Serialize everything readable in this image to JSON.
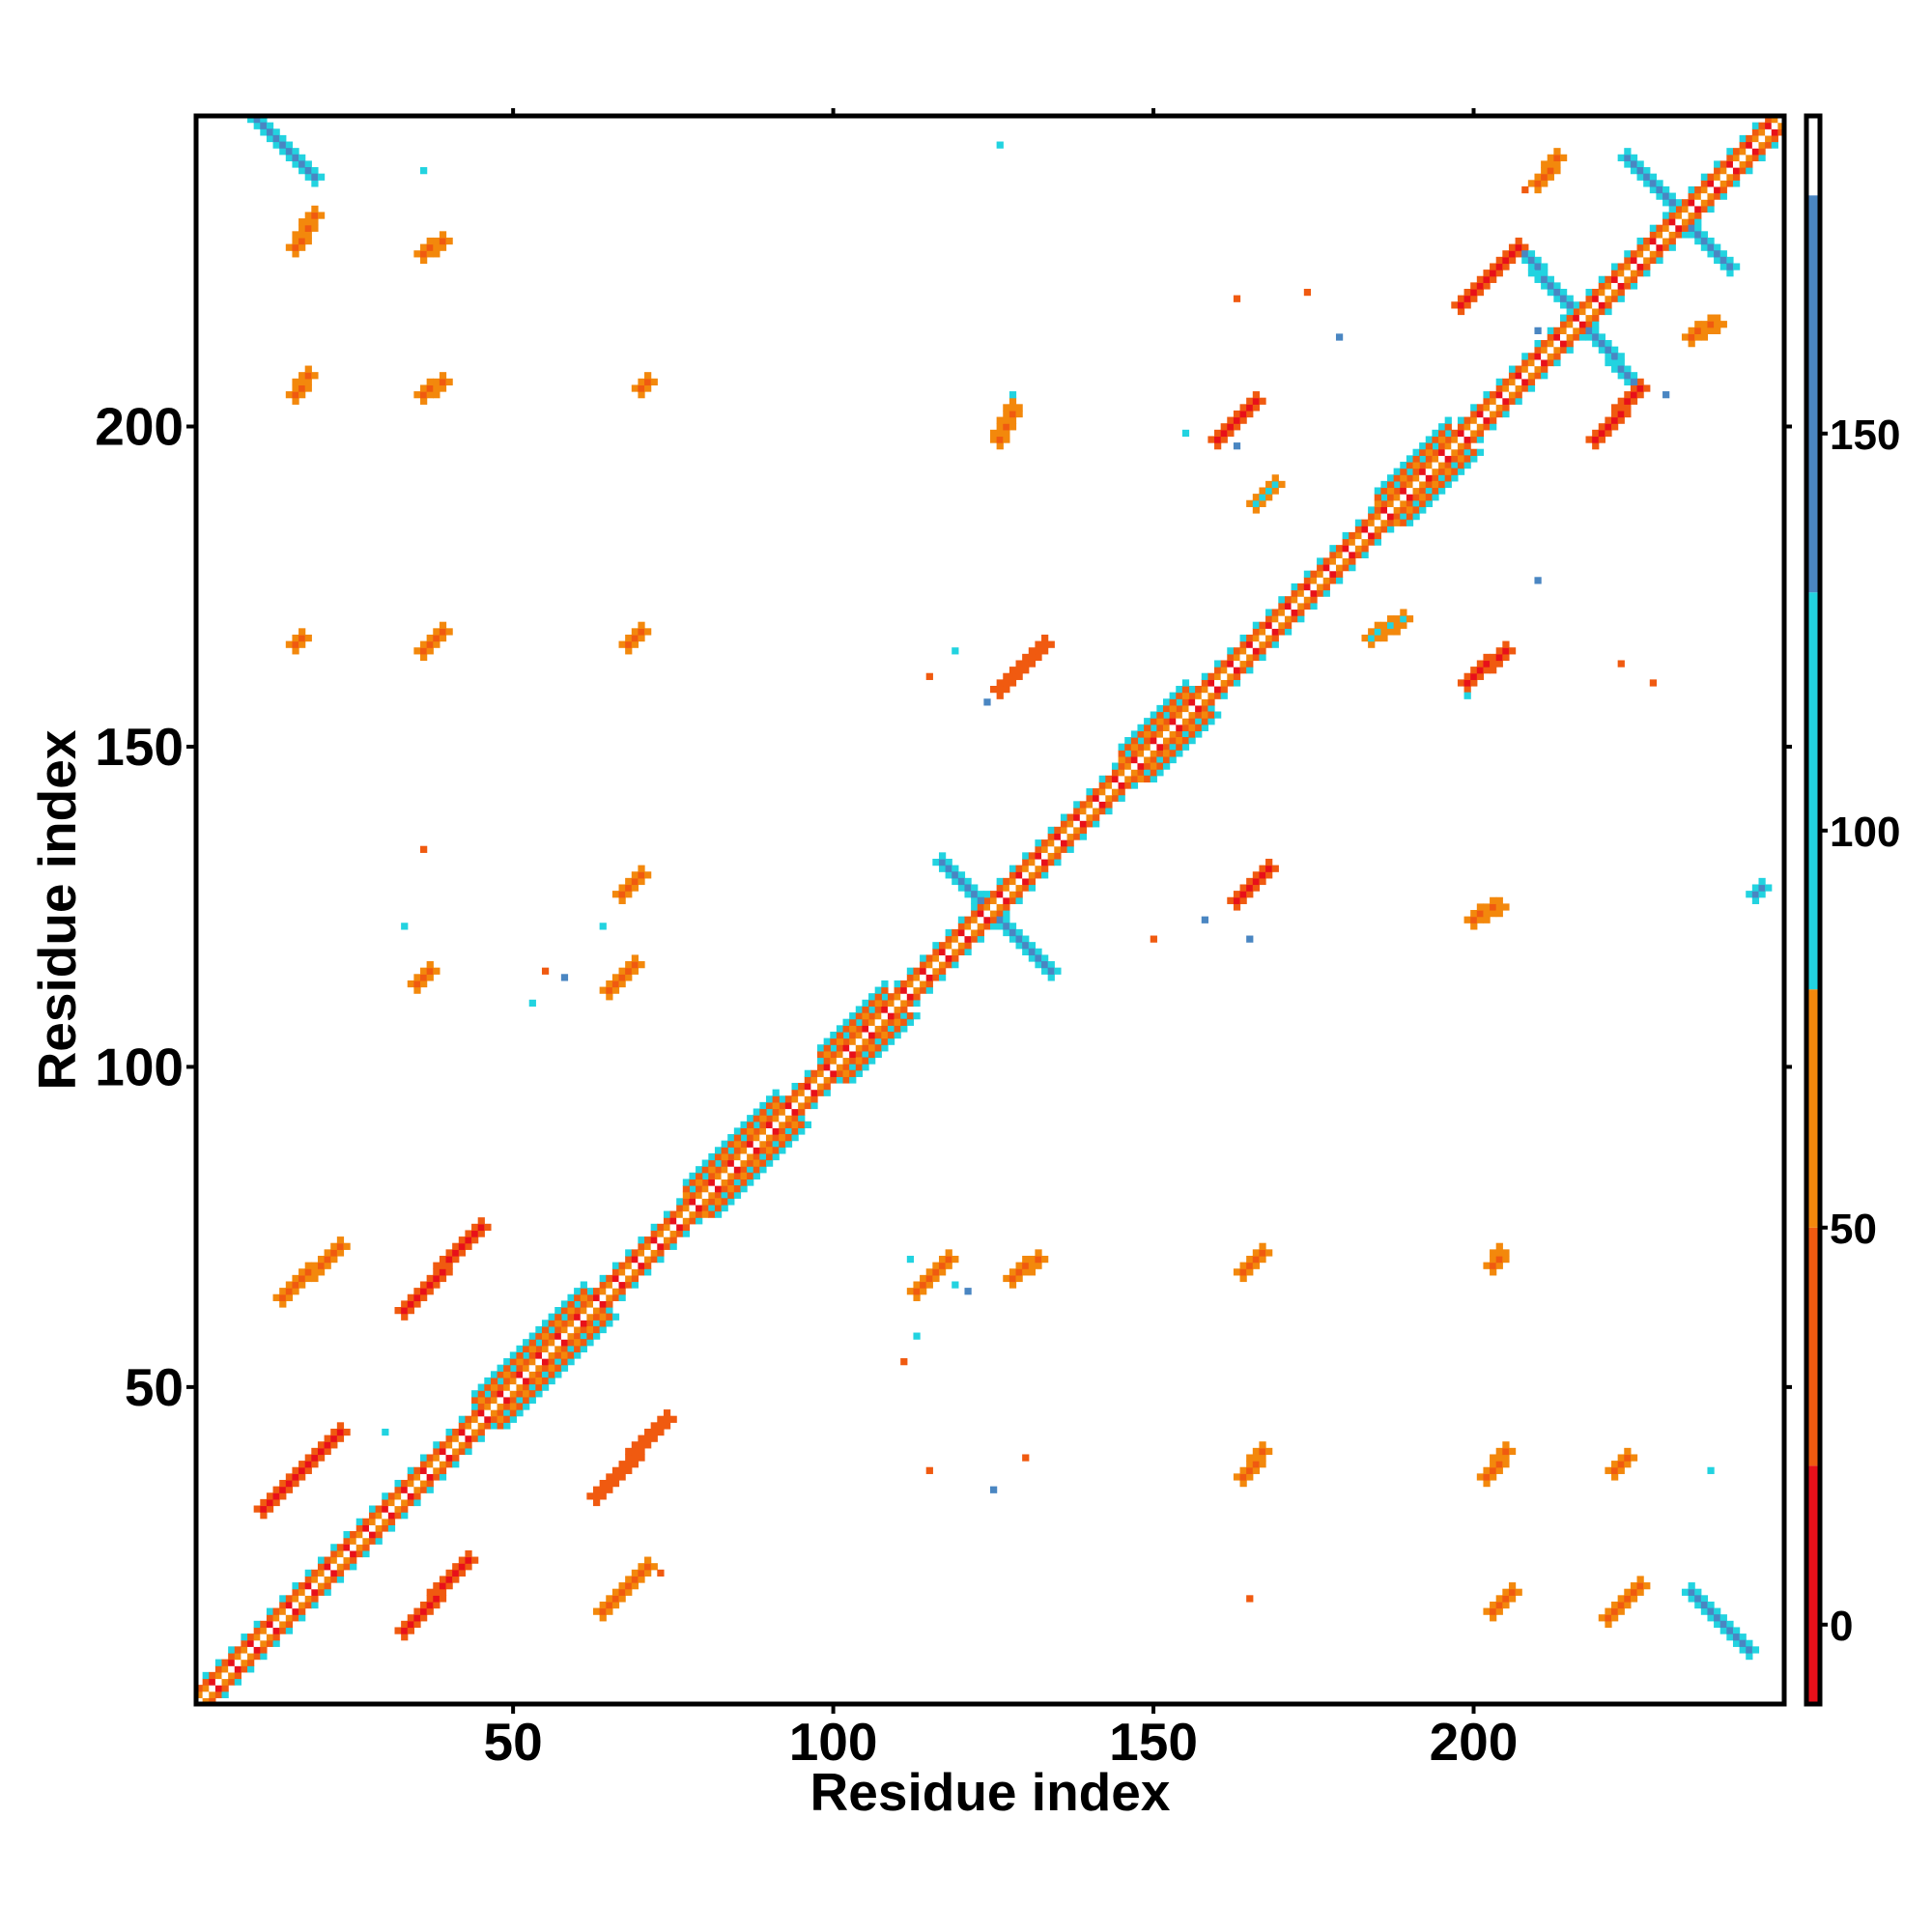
{
  "chart_data": {
    "type": "heatmap",
    "title": "",
    "xlabel": "Residue index",
    "ylabel": "Residue index",
    "xlim": [
      1,
      248
    ],
    "ylim": [
      1,
      248
    ],
    "x_ticks": [
      "50",
      "100",
      "150",
      "200"
    ],
    "x_tick_values": [
      50,
      100,
      150,
      200
    ],
    "y_ticks": [
      "50",
      "100",
      "150",
      "200"
    ],
    "y_tick_values": [
      50,
      100,
      150,
      200
    ],
    "grid": false,
    "colorbar": {
      "range": [
        -10,
        190
      ],
      "tick_labels": [
        "0",
        "50",
        "100",
        "150"
      ],
      "tick_values": [
        0,
        50,
        100,
        150
      ],
      "bands": [
        {
          "from": -10,
          "to": 20,
          "color": "#e8101a"
        },
        {
          "from": 20,
          "to": 50,
          "color": "#f05a10"
        },
        {
          "from": 50,
          "to": 80,
          "color": "#f3880c"
        },
        {
          "from": 80,
          "to": 130,
          "color": "#22d3e0"
        },
        {
          "from": 130,
          "to": 180,
          "color": "#4a86c2"
        },
        {
          "from": 180,
          "to": 190,
          "color": "#ffffff"
        }
      ]
    },
    "diagonal": {
      "from": 1,
      "to": 248
    },
    "contact_regions": [
      {
        "x": [
          10,
          19
        ],
        "y": [
          239,
          248
        ],
        "value": 150,
        "orientation": "anti"
      },
      {
        "x": [
          16,
          19
        ],
        "y": [
          228,
          233
        ],
        "value": 35,
        "orientation": "main"
      },
      {
        "x": [
          36,
          39
        ],
        "y": [
          227,
          229
        ],
        "value": 40,
        "orientation": "main"
      },
      {
        "x": [
          16,
          18
        ],
        "y": [
          205,
          208
        ],
        "value": 45,
        "orientation": "main"
      },
      {
        "x": [
          36,
          39
        ],
        "y": [
          205,
          207
        ],
        "value": 40,
        "orientation": "main"
      },
      {
        "x": [
          70,
          71
        ],
        "y": [
          206,
          207
        ],
        "value": 30,
        "orientation": "main"
      },
      {
        "x": [
          36,
          39
        ],
        "y": [
          165,
          168
        ],
        "value": 40,
        "orientation": "main"
      },
      {
        "x": [
          68,
          70
        ],
        "y": [
          166,
          168
        ],
        "value": 40,
        "orientation": "main"
      },
      {
        "x": [
          16,
          17
        ],
        "y": [
          166,
          167
        ],
        "value": 40,
        "orientation": "main"
      },
      {
        "x": [
          67,
          70
        ],
        "y": [
          127,
          130
        ],
        "value": 40,
        "orientation": "main"
      },
      {
        "x": [
          65,
          69
        ],
        "y": [
          112,
          116
        ],
        "value": 40,
        "orientation": "main"
      },
      {
        "x": [
          35,
          37
        ],
        "y": [
          113,
          115
        ],
        "value": 40,
        "orientation": "main"
      },
      {
        "x": [
          33,
          45
        ],
        "y": [
          62,
          75
        ],
        "value": 10,
        "orientation": "main"
      },
      {
        "x": [
          14,
          23
        ],
        "y": [
          64,
          72
        ],
        "value": 40,
        "orientation": "main"
      },
      {
        "x": [
          11,
          23
        ],
        "y": [
          31,
          43
        ],
        "value": 10,
        "orientation": "main"
      },
      {
        "x": [
          63,
          74
        ],
        "y": [
          33,
          45
        ],
        "value": 20,
        "orientation": "main"
      },
      {
        "x": [
          33,
          43
        ],
        "y": [
          12,
          23
        ],
        "value": 10,
        "orientation": "main"
      },
      {
        "x": [
          64,
          71
        ],
        "y": [
          15,
          22
        ],
        "value": 40,
        "orientation": "main"
      },
      {
        "x": [
          113,
          118
        ],
        "y": [
          65,
          70
        ],
        "value": 40,
        "orientation": "main"
      },
      {
        "x": [
          128,
          132
        ],
        "y": [
          67,
          70
        ],
        "value": 40,
        "orientation": "main"
      },
      {
        "x": [
          164,
          167
        ],
        "y": [
          68,
          71
        ],
        "value": 40,
        "orientation": "main"
      },
      {
        "x": [
          203,
          204
        ],
        "y": [
          69,
          71
        ],
        "value": 40,
        "orientation": "main"
      },
      {
        "x": [
          164,
          167
        ],
        "y": [
          36,
          40
        ],
        "value": 40,
        "orientation": "main"
      },
      {
        "x": [
          202,
          205
        ],
        "y": [
          36,
          40
        ],
        "value": 40,
        "orientation": "main"
      },
      {
        "x": [
          222,
          224
        ],
        "y": [
          37,
          39
        ],
        "value": 40,
        "orientation": "main"
      },
      {
        "x": [
          203,
          206
        ],
        "y": [
          15,
          18
        ],
        "value": 40,
        "orientation": "main"
      },
      {
        "x": [
          221,
          226
        ],
        "y": [
          14,
          19
        ],
        "value": 40,
        "orientation": "main"
      },
      {
        "x": [
          234,
          243
        ],
        "y": [
          9,
          18
        ],
        "value": 150,
        "orientation": "anti"
      },
      {
        "x": [
          117,
          134
        ],
        "y": [
          115,
          132
        ],
        "value": 150,
        "orientation": "anti"
      },
      {
        "x": [
          126,
          133
        ],
        "y": [
          159,
          166
        ],
        "value": 20,
        "orientation": "main"
      },
      {
        "x": [
          163,
          168
        ],
        "y": [
          126,
          131
        ],
        "value": 10,
        "orientation": "main"
      },
      {
        "x": [
          199,
          205
        ],
        "y": [
          160,
          165
        ],
        "value": 10,
        "orientation": "main"
      },
      {
        "x": [
          184,
          189
        ],
        "y": [
          167,
          170
        ],
        "value": 100,
        "orientation": "main"
      },
      {
        "x": [
          166,
          169
        ],
        "y": [
          188,
          191
        ],
        "value": 100,
        "orientation": "main"
      },
      {
        "x": [
          160,
          166
        ],
        "y": [
          198,
          204
        ],
        "value": 10,
        "orientation": "main"
      },
      {
        "x": [
          126,
          128
        ],
        "y": [
          198,
          203
        ],
        "value": 40,
        "orientation": "main"
      },
      {
        "x": [
          198,
          207
        ],
        "y": [
          219,
          228
        ],
        "value": 10,
        "orientation": "main"
      },
      {
        "x": [
          219,
          226
        ],
        "y": [
          198,
          206
        ],
        "value": 10,
        "orientation": "main"
      },
      {
        "x": [
          207,
          225
        ],
        "y": [
          207,
          228
        ],
        "value": 150,
        "orientation": "anti"
      },
      {
        "x": [
          224,
          240
        ],
        "y": [
          225,
          242
        ],
        "value": 150,
        "orientation": "anti"
      },
      {
        "x": [
          210,
          213
        ],
        "y": [
          238,
          242
        ],
        "value": 40,
        "orientation": "main"
      },
      {
        "x": [
          234,
          238
        ],
        "y": [
          214,
          216
        ],
        "value": 40,
        "orientation": "main"
      },
      {
        "x": [
          200,
          204
        ],
        "y": [
          123,
          125
        ],
        "value": 40,
        "orientation": "main"
      },
      {
        "x": [
          244,
          245
        ],
        "y": [
          127,
          128
        ],
        "value": 150,
        "orientation": "main"
      }
    ],
    "helix_segments": [
      {
        "from": 44,
        "to": 61
      },
      {
        "from": 77,
        "to": 91
      },
      {
        "from": 98,
        "to": 108
      },
      {
        "from": 145,
        "to": 155
      },
      {
        "from": 185,
        "to": 196
      }
    ],
    "scatter_points": [
      [
        36,
        240,
        100
      ],
      [
        126,
        244,
        100
      ],
      [
        208,
        237,
        40
      ],
      [
        163,
        220,
        40
      ],
      [
        174,
        221,
        40
      ],
      [
        179,
        214,
        150
      ],
      [
        210,
        215,
        150
      ],
      [
        213,
        210,
        100
      ],
      [
        230,
        205,
        150
      ],
      [
        128,
        205,
        100
      ],
      [
        155,
        199,
        100
      ],
      [
        163,
        197,
        150
      ],
      [
        228,
        160,
        40
      ],
      [
        223,
        163,
        40
      ],
      [
        210,
        176,
        150
      ],
      [
        199,
        158,
        100
      ],
      [
        119,
        165,
        100
      ],
      [
        124,
        157,
        150
      ],
      [
        115,
        161,
        40
      ],
      [
        140,
        140,
        100
      ],
      [
        158,
        123,
        150
      ],
      [
        165,
        120,
        150
      ],
      [
        150,
        120,
        40
      ],
      [
        36,
        134,
        40
      ],
      [
        33,
        122,
        100
      ],
      [
        64,
        122,
        100
      ],
      [
        53,
        110,
        100
      ],
      [
        58,
        114,
        150
      ],
      [
        112,
        70,
        100
      ],
      [
        121,
        65,
        150
      ],
      [
        119,
        66,
        100
      ],
      [
        113,
        58,
        100
      ],
      [
        111,
        54,
        40
      ],
      [
        115,
        37,
        40
      ],
      [
        125,
        34,
        150
      ],
      [
        130,
        39,
        40
      ],
      [
        165,
        17,
        40
      ],
      [
        237,
        37,
        100
      ],
      [
        73,
        21,
        40
      ],
      [
        30,
        43,
        100
      ],
      [
        23,
        71,
        40
      ],
      [
        55,
        115,
        40
      ]
    ]
  }
}
